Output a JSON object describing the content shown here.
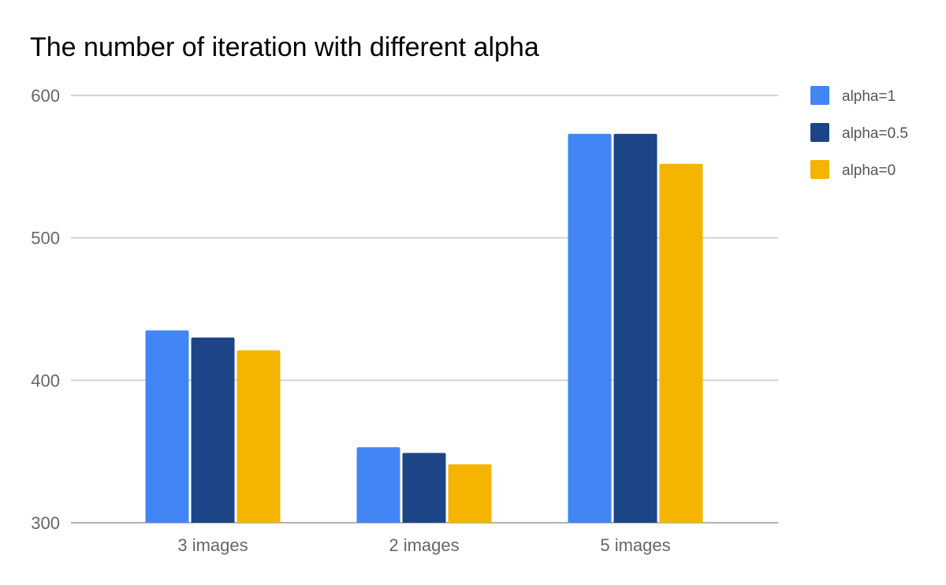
{
  "chart_data": {
    "type": "bar",
    "title": "The number of iteration with different alpha",
    "xlabel": "",
    "ylabel": "",
    "categories": [
      "3 images",
      "2 images",
      "5 images"
    ],
    "series": [
      {
        "name": "alpha=1",
        "color": "#4285f4",
        "values": [
          435,
          353,
          573
        ]
      },
      {
        "name": "alpha=0.5",
        "color": "#1c4587",
        "values": [
          430,
          349,
          573
        ]
      },
      {
        "name": "alpha=0",
        "color": "#f4b400",
        "values": [
          421,
          341,
          552
        ]
      }
    ],
    "ylim": [
      300,
      600
    ],
    "yticks": [
      300,
      400,
      500,
      600
    ],
    "grid": true,
    "legend_position": "right"
  }
}
